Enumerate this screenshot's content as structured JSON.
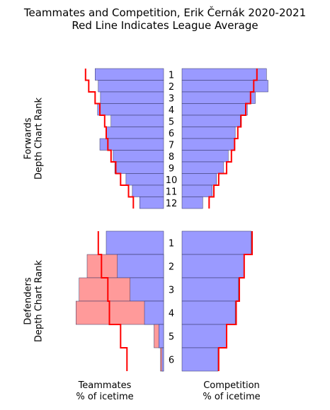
{
  "title": {
    "line1": "Teammates and Competition, Erik Černák 2020-2021",
    "line2": "Red Line Indicates League Average"
  },
  "colors": {
    "blue_bar": "#9a9aff",
    "red_bar": "#ff9a9a",
    "league_line": "#ff0000",
    "bar_edge": "#303060"
  },
  "chart_data": [
    {
      "type": "bar",
      "orientation": "horizontal-mirrored",
      "ylabel": "Forwards\nDepth Chart Rank",
      "categories": [
        "1",
        "2",
        "3",
        "4",
        "5",
        "6",
        "7",
        "8",
        "9",
        "10",
        "11",
        "12"
      ],
      "series": [
        {
          "name": "Teammates % of icetime",
          "side": "left",
          "values": [
            21.5,
            20.5,
            19.8,
            20.7,
            16.5,
            18.0,
            20.0,
            15.8,
            15.3,
            11.8,
            9.8,
            7.5
          ]
        },
        {
          "name": "Competition % of icetime",
          "side": "right",
          "values": [
            26.5,
            27.0,
            23.0,
            20.5,
            18.3,
            16.7,
            16.5,
            14.5,
            13.0,
            10.8,
            9.5,
            6.5
          ]
        },
        {
          "name": "League average (teammates)",
          "side": "left",
          "style": "step-line",
          "values": [
            24.5,
            23.5,
            21.5,
            20.0,
            18.5,
            18.0,
            17.5,
            16.5,
            15.0,
            13.5,
            11.0,
            9.5
          ]
        },
        {
          "name": "League average (competition)",
          "side": "right",
          "style": "step-line",
          "values": [
            23.5,
            22.5,
            21.5,
            20.0,
            18.5,
            17.5,
            16.5,
            15.5,
            14.0,
            11.5,
            10.0,
            8.5
          ]
        }
      ]
    },
    {
      "type": "bar",
      "orientation": "horizontal-mirrored",
      "ylabel": "Defenders\nDepth Chart Rank",
      "categories": [
        "1",
        "2",
        "3",
        "4",
        "5",
        "6"
      ],
      "series": [
        {
          "name": "Teammates % of icetime",
          "side": "left",
          "values": [
            18.0,
            14.5,
            10.5,
            6.0,
            1.5,
            0.5
          ],
          "below_average_overlay": [
            0,
            24.0,
            26.5,
            27.5,
            3.0,
            1.0
          ]
        },
        {
          "name": "Competition % of icetime",
          "side": "right",
          "values": [
            21.7,
            19.5,
            17.7,
            16.7,
            14.0,
            11.3
          ]
        },
        {
          "name": "League average (teammates)",
          "side": "left",
          "style": "step-line",
          "values": [
            20.5,
            19.5,
            17.5,
            17.0,
            13.5,
            11.5
          ]
        },
        {
          "name": "League average (competition)",
          "side": "right",
          "style": "step-line",
          "values": [
            22.0,
            19.5,
            18.0,
            17.0,
            14.0,
            11.5
          ]
        }
      ]
    }
  ],
  "xlabels": {
    "left": "Teammates\n% of icetime",
    "right": "Competition\n% of icetime"
  }
}
